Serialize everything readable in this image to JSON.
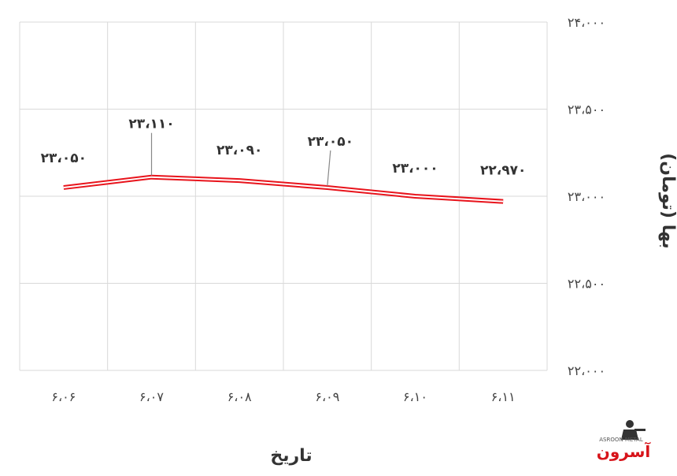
{
  "chart_data": {
    "type": "line",
    "categories": [
      "۶،۰۶",
      "۶،۰۷",
      "۶،۰۸",
      "۶،۰۹",
      "۶،۱۰",
      "۶،۱۱"
    ],
    "values": [
      23050,
      23110,
      23090,
      23050,
      23000,
      22970
    ],
    "data_labels": [
      "۲۳،۰۵۰",
      "۲۳،۱۱۰",
      "۲۳،۰۹۰",
      "۲۳،۰۵۰",
      "۲۳،۰۰۰",
      "۲۲،۹۷۰"
    ],
    "y_ticks": [
      22000,
      22500,
      23000,
      23500,
      24000
    ],
    "y_tick_labels": [
      "۲۲،۰۰۰",
      "۲۲،۵۰۰",
      "۲۳،۰۰۰",
      "۲۳،۵۰۰",
      "۲۴،۰۰۰"
    ],
    "ylim": [
      22000,
      24000
    ],
    "xlabel": "تاریخ",
    "ylabel": "بها (تومان)",
    "grid": true,
    "y_axis_side": "right",
    "line_color": "#e8141c"
  },
  "logo": {
    "text": "آسرون",
    "subtext": "ASROON METAL"
  }
}
